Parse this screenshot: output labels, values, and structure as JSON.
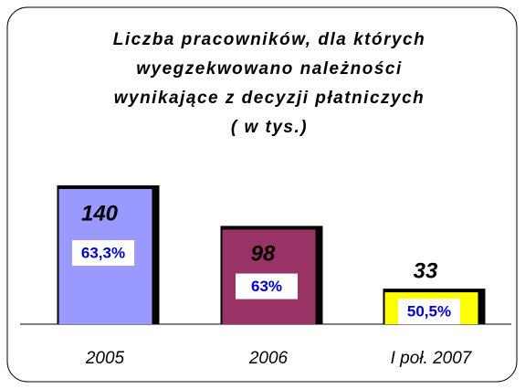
{
  "chart_data": {
    "type": "bar",
    "title": [
      "Liczba pracowników, dla których",
      "wyegzekwowano należności",
      "wynikające z decyzji płatniczych",
      "( w tys.)"
    ],
    "categories": [
      "2005",
      "2006",
      "I poł. 2007"
    ],
    "values": [
      140,
      98,
      33
    ],
    "colors": [
      "#9999ff",
      "#993366",
      "#ffff00"
    ],
    "percent_values": [
      63.3,
      63,
      50.5
    ],
    "percent_labels": [
      "63,3%",
      "63%",
      "50,5%"
    ]
  }
}
